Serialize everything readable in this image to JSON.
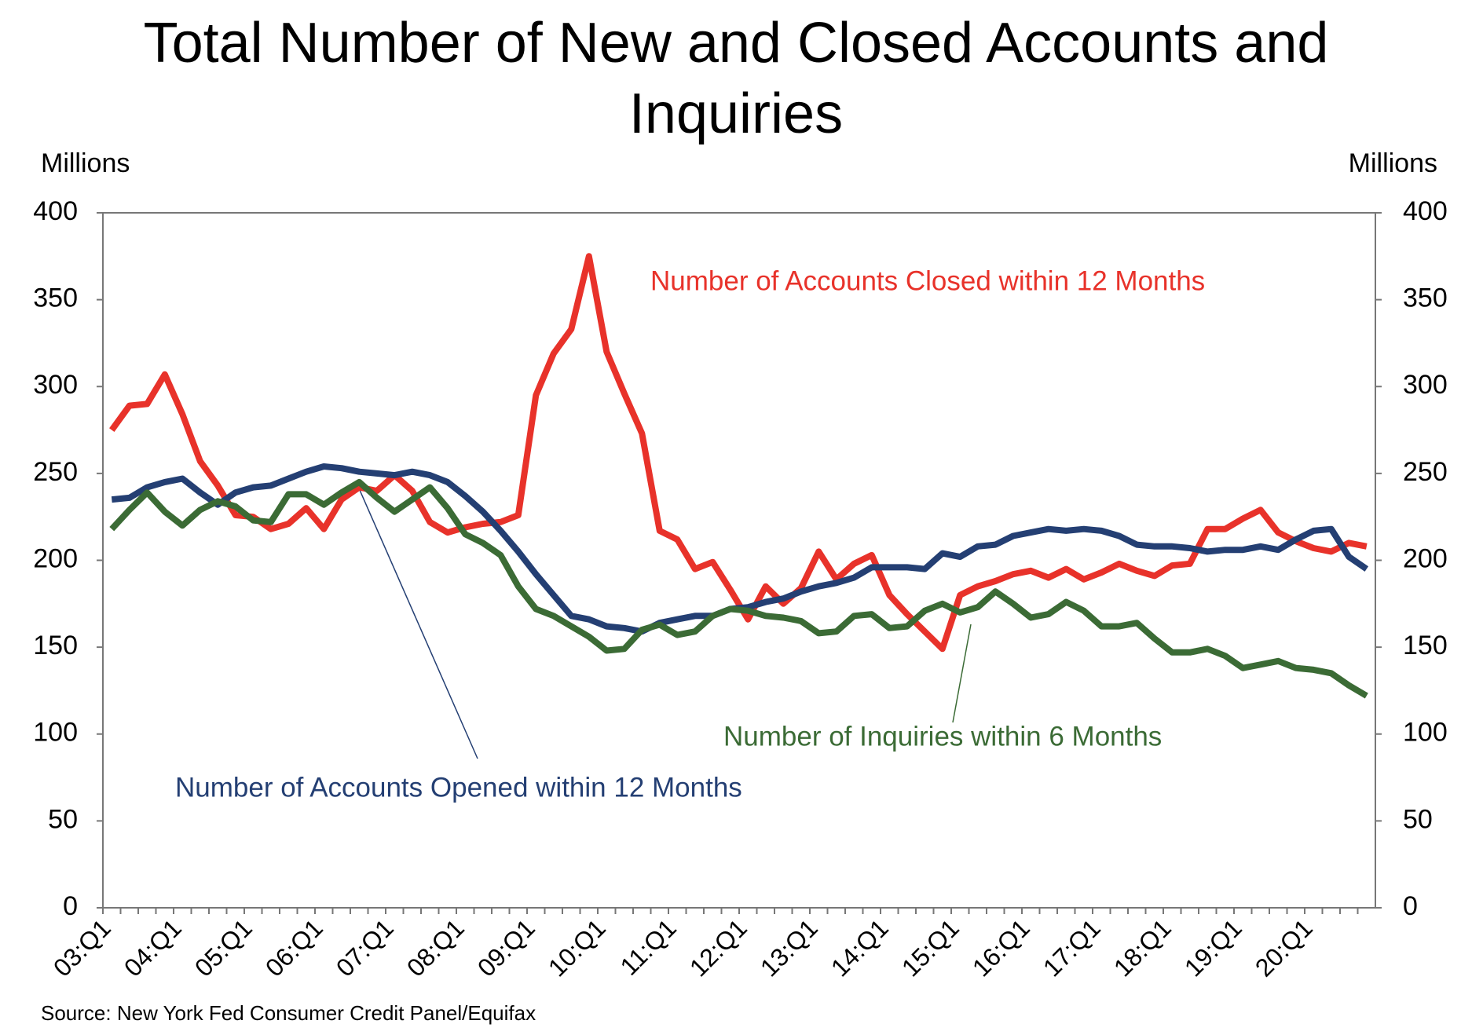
{
  "chart_data": {
    "type": "line",
    "title": "Total Number of New and Closed Accounts and Inquiries",
    "y_axis_label": "Millions",
    "y2_axis_label": "Millions",
    "source": "Source: New York Fed Consumer Credit Panel/Equifax",
    "categories": [
      "03:Q1",
      null,
      null,
      null,
      "04:Q1",
      null,
      null,
      null,
      "05:Q1",
      null,
      null,
      null,
      "06:Q1",
      null,
      null,
      null,
      "07:Q1",
      null,
      null,
      null,
      "08:Q1",
      null,
      null,
      null,
      "09:Q1",
      null,
      null,
      null,
      "10:Q1",
      null,
      null,
      null,
      "11:Q1",
      null,
      null,
      null,
      "12:Q1",
      null,
      null,
      null,
      "13:Q1",
      null,
      null,
      null,
      "14:Q1",
      null,
      null,
      null,
      "15:Q1",
      null,
      null,
      null,
      "16:Q1",
      null,
      null,
      null,
      "17:Q1",
      null,
      null,
      null,
      "18:Q1",
      null,
      null,
      null,
      "19:Q1",
      null,
      null,
      null,
      "20:Q1",
      null,
      null,
      null
    ],
    "series": [
      {
        "name": "Number of Accounts Closed within 12 Months",
        "color": "#e8322a",
        "values": [
          275,
          289,
          290,
          307,
          284,
          257,
          243,
          226,
          225,
          218,
          221,
          230,
          218,
          235,
          242,
          240,
          249,
          240,
          222,
          216,
          219,
          221,
          222,
          226,
          295,
          319,
          333,
          375,
          320,
          296,
          273,
          217,
          212,
          195,
          199,
          183,
          166,
          185,
          175,
          184,
          205,
          189,
          198,
          203,
          180,
          169,
          159,
          149,
          180,
          185,
          188,
          192,
          194,
          190,
          195,
          189,
          193,
          198,
          194,
          191,
          197,
          198,
          218,
          218,
          224,
          229,
          216,
          211,
          207,
          205,
          210,
          208
        ]
      },
      {
        "name": "Number of Accounts Opened within 12 Months",
        "color": "#243f73",
        "values": [
          235,
          236,
          242,
          245,
          247,
          239,
          232,
          239,
          242,
          243,
          247,
          251,
          254,
          253,
          251,
          250,
          249,
          251,
          249,
          245,
          237,
          228,
          217,
          205,
          192,
          180,
          168,
          166,
          162,
          161,
          159,
          164,
          166,
          168,
          168,
          172,
          173,
          176,
          178,
          182,
          185,
          187,
          190,
          196,
          196,
          196,
          195,
          204,
          202,
          208,
          209,
          214,
          216,
          218,
          217,
          218,
          217,
          214,
          209,
          208,
          208,
          207,
          205,
          206,
          206,
          208,
          206,
          212,
          217,
          218,
          202,
          195
        ]
      },
      {
        "name": "Number of Inquiries within 6 Months",
        "color": "#3b6b35",
        "values": [
          218,
          229,
          239,
          228,
          220,
          229,
          234,
          231,
          223,
          222,
          238,
          238,
          232,
          239,
          245,
          236,
          228,
          235,
          242,
          230,
          215,
          210,
          203,
          185,
          172,
          168,
          162,
          156,
          148,
          149,
          160,
          163,
          157,
          159,
          168,
          172,
          171,
          168,
          167,
          165,
          158,
          159,
          168,
          169,
          161,
          162,
          171,
          175,
          170,
          173,
          182,
          175,
          167,
          169,
          176,
          171,
          162,
          162,
          164,
          155,
          147,
          147,
          149,
          145,
          138,
          140,
          142,
          138,
          137,
          135,
          128,
          122
        ]
      }
    ],
    "ylim": [
      0,
      400
    ],
    "yticks": [
      0,
      50,
      100,
      150,
      200,
      250,
      300,
      350,
      400
    ],
    "y2lim": [
      0,
      400
    ],
    "y2ticks": [
      0,
      50,
      100,
      150,
      200,
      250,
      300,
      350,
      400
    ]
  }
}
